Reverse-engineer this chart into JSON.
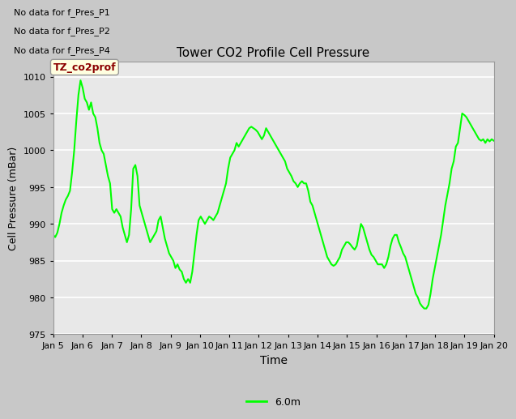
{
  "title": "Tower CO2 Profile Cell Pressure",
  "xlabel": "Time",
  "ylabel": "Cell Pressure (mBar)",
  "ylim": [
    975,
    1012
  ],
  "yticks": [
    975,
    980,
    985,
    990,
    995,
    1000,
    1005,
    1010
  ],
  "line_color": "#00FF00",
  "line_width": 1.5,
  "fig_bg_color": "#C8C8C8",
  "plot_bg_color": "#E8E8E8",
  "grid_color": "#FFFFFF",
  "legend_label": "6.0m",
  "no_data_labels": [
    "No data for f_Pres_P1",
    "No data for f_Pres_P2",
    "No data for f_Pres_P4"
  ],
  "legend_box_label": "TZ_co2prof",
  "x_tick_labels": [
    "Jan 5",
    "Jan 6",
    "Jan 7",
    "Jan 8",
    "Jan 9",
    "Jan 10",
    "Jan 11",
    "Jan 12",
    "Jan 13",
    "Jan 14",
    "Jan 15",
    "Jan 16",
    "Jan 17",
    "Jan 18",
    "Jan 19",
    "Jan 20"
  ],
  "y_values": [
    988.5,
    988.2,
    988.8,
    990.0,
    991.5,
    992.5,
    993.3,
    993.8,
    994.5,
    997.0,
    1000.0,
    1004.0,
    1007.5,
    1009.5,
    1008.5,
    1007.0,
    1006.5,
    1005.5,
    1006.5,
    1005.0,
    1004.5,
    1003.0,
    1001.0,
    1000.0,
    999.5,
    998.0,
    996.5,
    995.5,
    992.0,
    991.5,
    992.0,
    991.5,
    991.0,
    989.5,
    988.5,
    987.5,
    988.5,
    992.0,
    997.5,
    998.0,
    996.5,
    992.5,
    991.5,
    990.5,
    989.5,
    988.5,
    987.5,
    988.0,
    988.5,
    989.0,
    990.5,
    991.0,
    989.5,
    988.0,
    987.0,
    986.0,
    985.5,
    985.0,
    984.0,
    984.5,
    983.8,
    983.5,
    982.5,
    982.0,
    982.5,
    982.0,
    983.5,
    986.0,
    988.5,
    990.5,
    991.0,
    990.5,
    990.0,
    990.5,
    991.0,
    990.8,
    990.5,
    991.0,
    991.5,
    992.5,
    993.5,
    994.5,
    995.5,
    997.5,
    999.0,
    999.5,
    1000.0,
    1001.0,
    1000.5,
    1001.0,
    1001.5,
    1002.0,
    1002.5,
    1003.0,
    1003.2,
    1003.0,
    1002.8,
    1002.5,
    1002.0,
    1001.5,
    1002.0,
    1003.0,
    1002.5,
    1002.0,
    1001.5,
    1001.0,
    1000.5,
    1000.0,
    999.5,
    999.0,
    998.5,
    997.5,
    997.0,
    996.5,
    995.8,
    995.5,
    995.0,
    995.5,
    995.8,
    995.5,
    995.5,
    994.5,
    993.0,
    992.5,
    991.5,
    990.5,
    989.5,
    988.5,
    987.5,
    986.5,
    985.5,
    985.0,
    984.5,
    984.3,
    984.5,
    985.0,
    985.5,
    986.5,
    987.0,
    987.5,
    987.5,
    987.2,
    986.8,
    986.5,
    987.0,
    988.5,
    990.0,
    989.5,
    988.5,
    987.5,
    986.5,
    985.8,
    985.5,
    985.0,
    984.5,
    984.5,
    984.5,
    984.0,
    984.5,
    985.5,
    987.0,
    988.0,
    988.5,
    988.5,
    987.5,
    986.8,
    986.0,
    985.5,
    984.5,
    983.5,
    982.5,
    981.5,
    980.5,
    980.0,
    979.2,
    978.8,
    978.5,
    978.5,
    979.0,
    980.5,
    982.5,
    984.0,
    985.5,
    987.0,
    988.5,
    990.5,
    992.5,
    994.0,
    995.5,
    997.5,
    998.5,
    1000.5,
    1001.0,
    1003.0,
    1005.0,
    1004.8,
    1004.5,
    1004.0,
    1003.5,
    1003.0,
    1002.5,
    1002.0,
    1001.5,
    1001.3,
    1001.5,
    1001.0,
    1001.5,
    1001.2,
    1001.5,
    1001.3
  ]
}
